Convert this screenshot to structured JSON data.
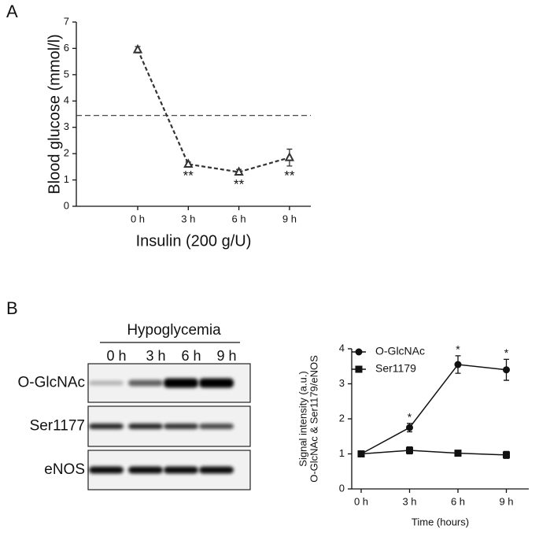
{
  "chart_data": [
    {
      "type": "line",
      "panel": "A",
      "x_label": "Insulin (200 g/U)",
      "y_label": "Blood glucose (mmol/l)",
      "categories": [
        "0 h",
        "3 h",
        "6 h",
        "9 h"
      ],
      "series": [
        {
          "color": "#333333",
          "marker": "triangle",
          "dashed": true,
          "values": [
            5.95,
            1.6,
            1.3,
            1.85
          ],
          "errors": [
            0.12,
            0.08,
            0.1,
            0.32
          ]
        }
      ],
      "annotations": [
        null,
        "**",
        "**",
        "**"
      ],
      "reference_line": 3.45,
      "ylim": [
        0,
        7
      ],
      "yticks": [
        0,
        1,
        2,
        3,
        4,
        5,
        6,
        7
      ]
    },
    {
      "type": "line",
      "x_label": "Time (hours)",
      "y_label": [
        "Signal intensity (a.u.)",
        "O-GlcNAc & Ser1179/eNOS"
      ],
      "categories": [
        "0 h",
        "3 h",
        "6 h",
        "9 h"
      ],
      "series": [
        {
          "name": "O-GlcNAc",
          "color": "#111111",
          "marker": "circle",
          "dashed": false,
          "values": [
            1.0,
            1.75,
            3.55,
            3.4
          ],
          "errors": [
            0.08,
            0.12,
            0.25,
            0.3
          ]
        },
        {
          "name": "Ser1179",
          "color": "#111111",
          "marker": "square",
          "dashed": false,
          "values": [
            1.0,
            1.1,
            1.02,
            0.97
          ],
          "errors": [
            0.08,
            0.1,
            0.07,
            0.1
          ]
        }
      ],
      "annotations": [
        null,
        "*",
        "*",
        "*"
      ],
      "legend": "upper left",
      "ylim": [
        0,
        4
      ],
      "yticks": [
        0,
        1,
        2,
        3,
        4
      ]
    }
  ],
  "blot": {
    "panel": "B",
    "condition": "Hypoglycemia",
    "lanes": [
      "0 h",
      "3 h",
      "6 h",
      "9 h"
    ],
    "rows": [
      "O-GlcNAc",
      "Ser1177",
      "eNOS"
    ]
  }
}
